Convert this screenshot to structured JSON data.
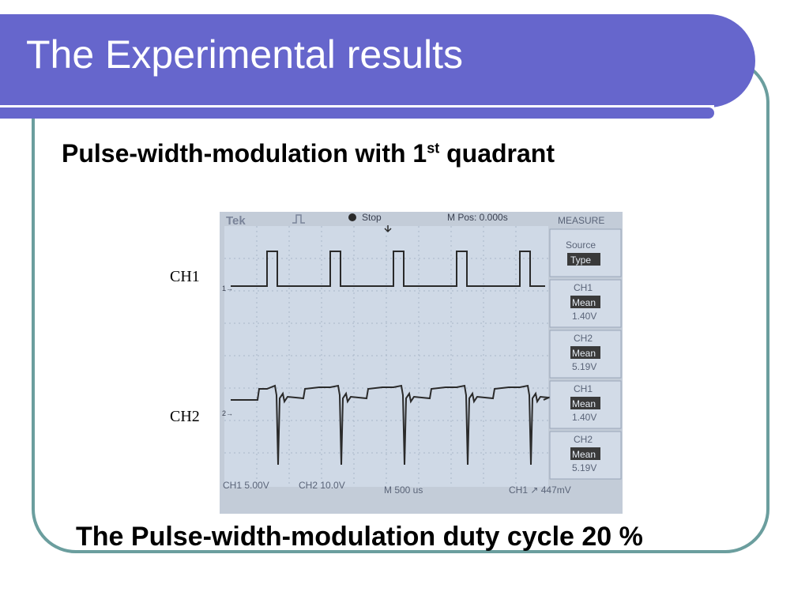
{
  "slide": {
    "title": "The Experimental results",
    "subtitle_prefix": "Pulse-width-modulation with 1",
    "subtitle_sup": "st",
    "subtitle_suffix": " quadrant",
    "caption": "The Pulse-width-modulation duty cycle 20 %",
    "ch1_label": "CH1",
    "ch2_label": "CH2"
  },
  "scope": {
    "brand": "Tek",
    "status": "Stop",
    "mpos": "M Pos: 0.000s",
    "menu_title": "MEASURE",
    "source_label": "Source",
    "type_label": "Type",
    "measurements": [
      {
        "channel": "CH1",
        "type": "Mean",
        "value": "1.40V"
      },
      {
        "channel": "CH2",
        "type": "Mean",
        "value": "5.19V"
      },
      {
        "channel": "CH1",
        "type": "Mean",
        "value": "1.40V"
      },
      {
        "channel": "CH2",
        "type": "Mean",
        "value": "5.19V"
      }
    ],
    "ch1_scale": "CH1  5.00V",
    "ch2_scale": "CH2  10.0V",
    "timebase": "M 500 us",
    "trigger": "CH1  ↗  447mV",
    "ch1_marker": "1→",
    "ch2_marker": "2→"
  },
  "colors": {
    "title_bar": "#6666cc",
    "frame": "#6b9e9e",
    "screen": "#cfd9e6",
    "trace": "#2a2a2a"
  }
}
